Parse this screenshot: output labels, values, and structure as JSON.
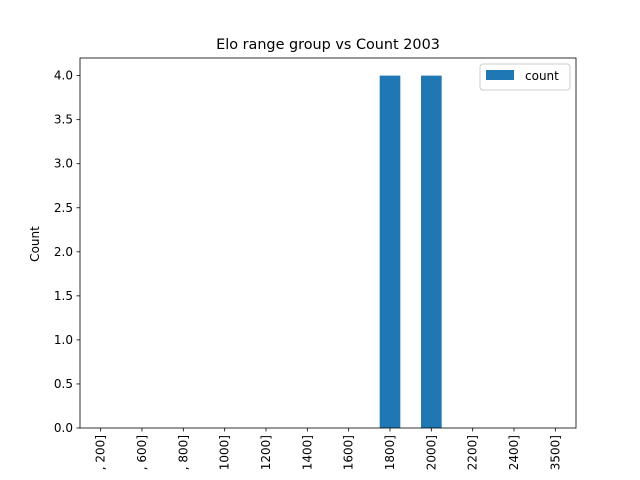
{
  "chart_data": {
    "type": "bar",
    "title": "Elo range group vs Count 2003",
    "xlabel": "",
    "ylabel": "Count",
    "categories": [
      ", 200]",
      ", 600]",
      ", 800]",
      "1000]",
      "1200]",
      "1400]",
      "1600]",
      "1800]",
      "2000]",
      "2200]",
      "2400]",
      "3500]"
    ],
    "series": [
      {
        "name": "count",
        "values": [
          0,
          0,
          0,
          0,
          0,
          0,
          0,
          4,
          4,
          0,
          0,
          0
        ],
        "color": "#1f77b4"
      }
    ],
    "ylim": [
      0,
      4.2
    ],
    "yticks": [
      0.0,
      0.5,
      1.0,
      1.5,
      2.0,
      2.5,
      3.0,
      3.5,
      4.0
    ],
    "ytick_labels": [
      "0.0",
      "0.5",
      "1.0",
      "1.5",
      "2.0",
      "2.5",
      "3.0",
      "3.5",
      "4.0"
    ],
    "grid": false,
    "legend_position": "top-right"
  }
}
